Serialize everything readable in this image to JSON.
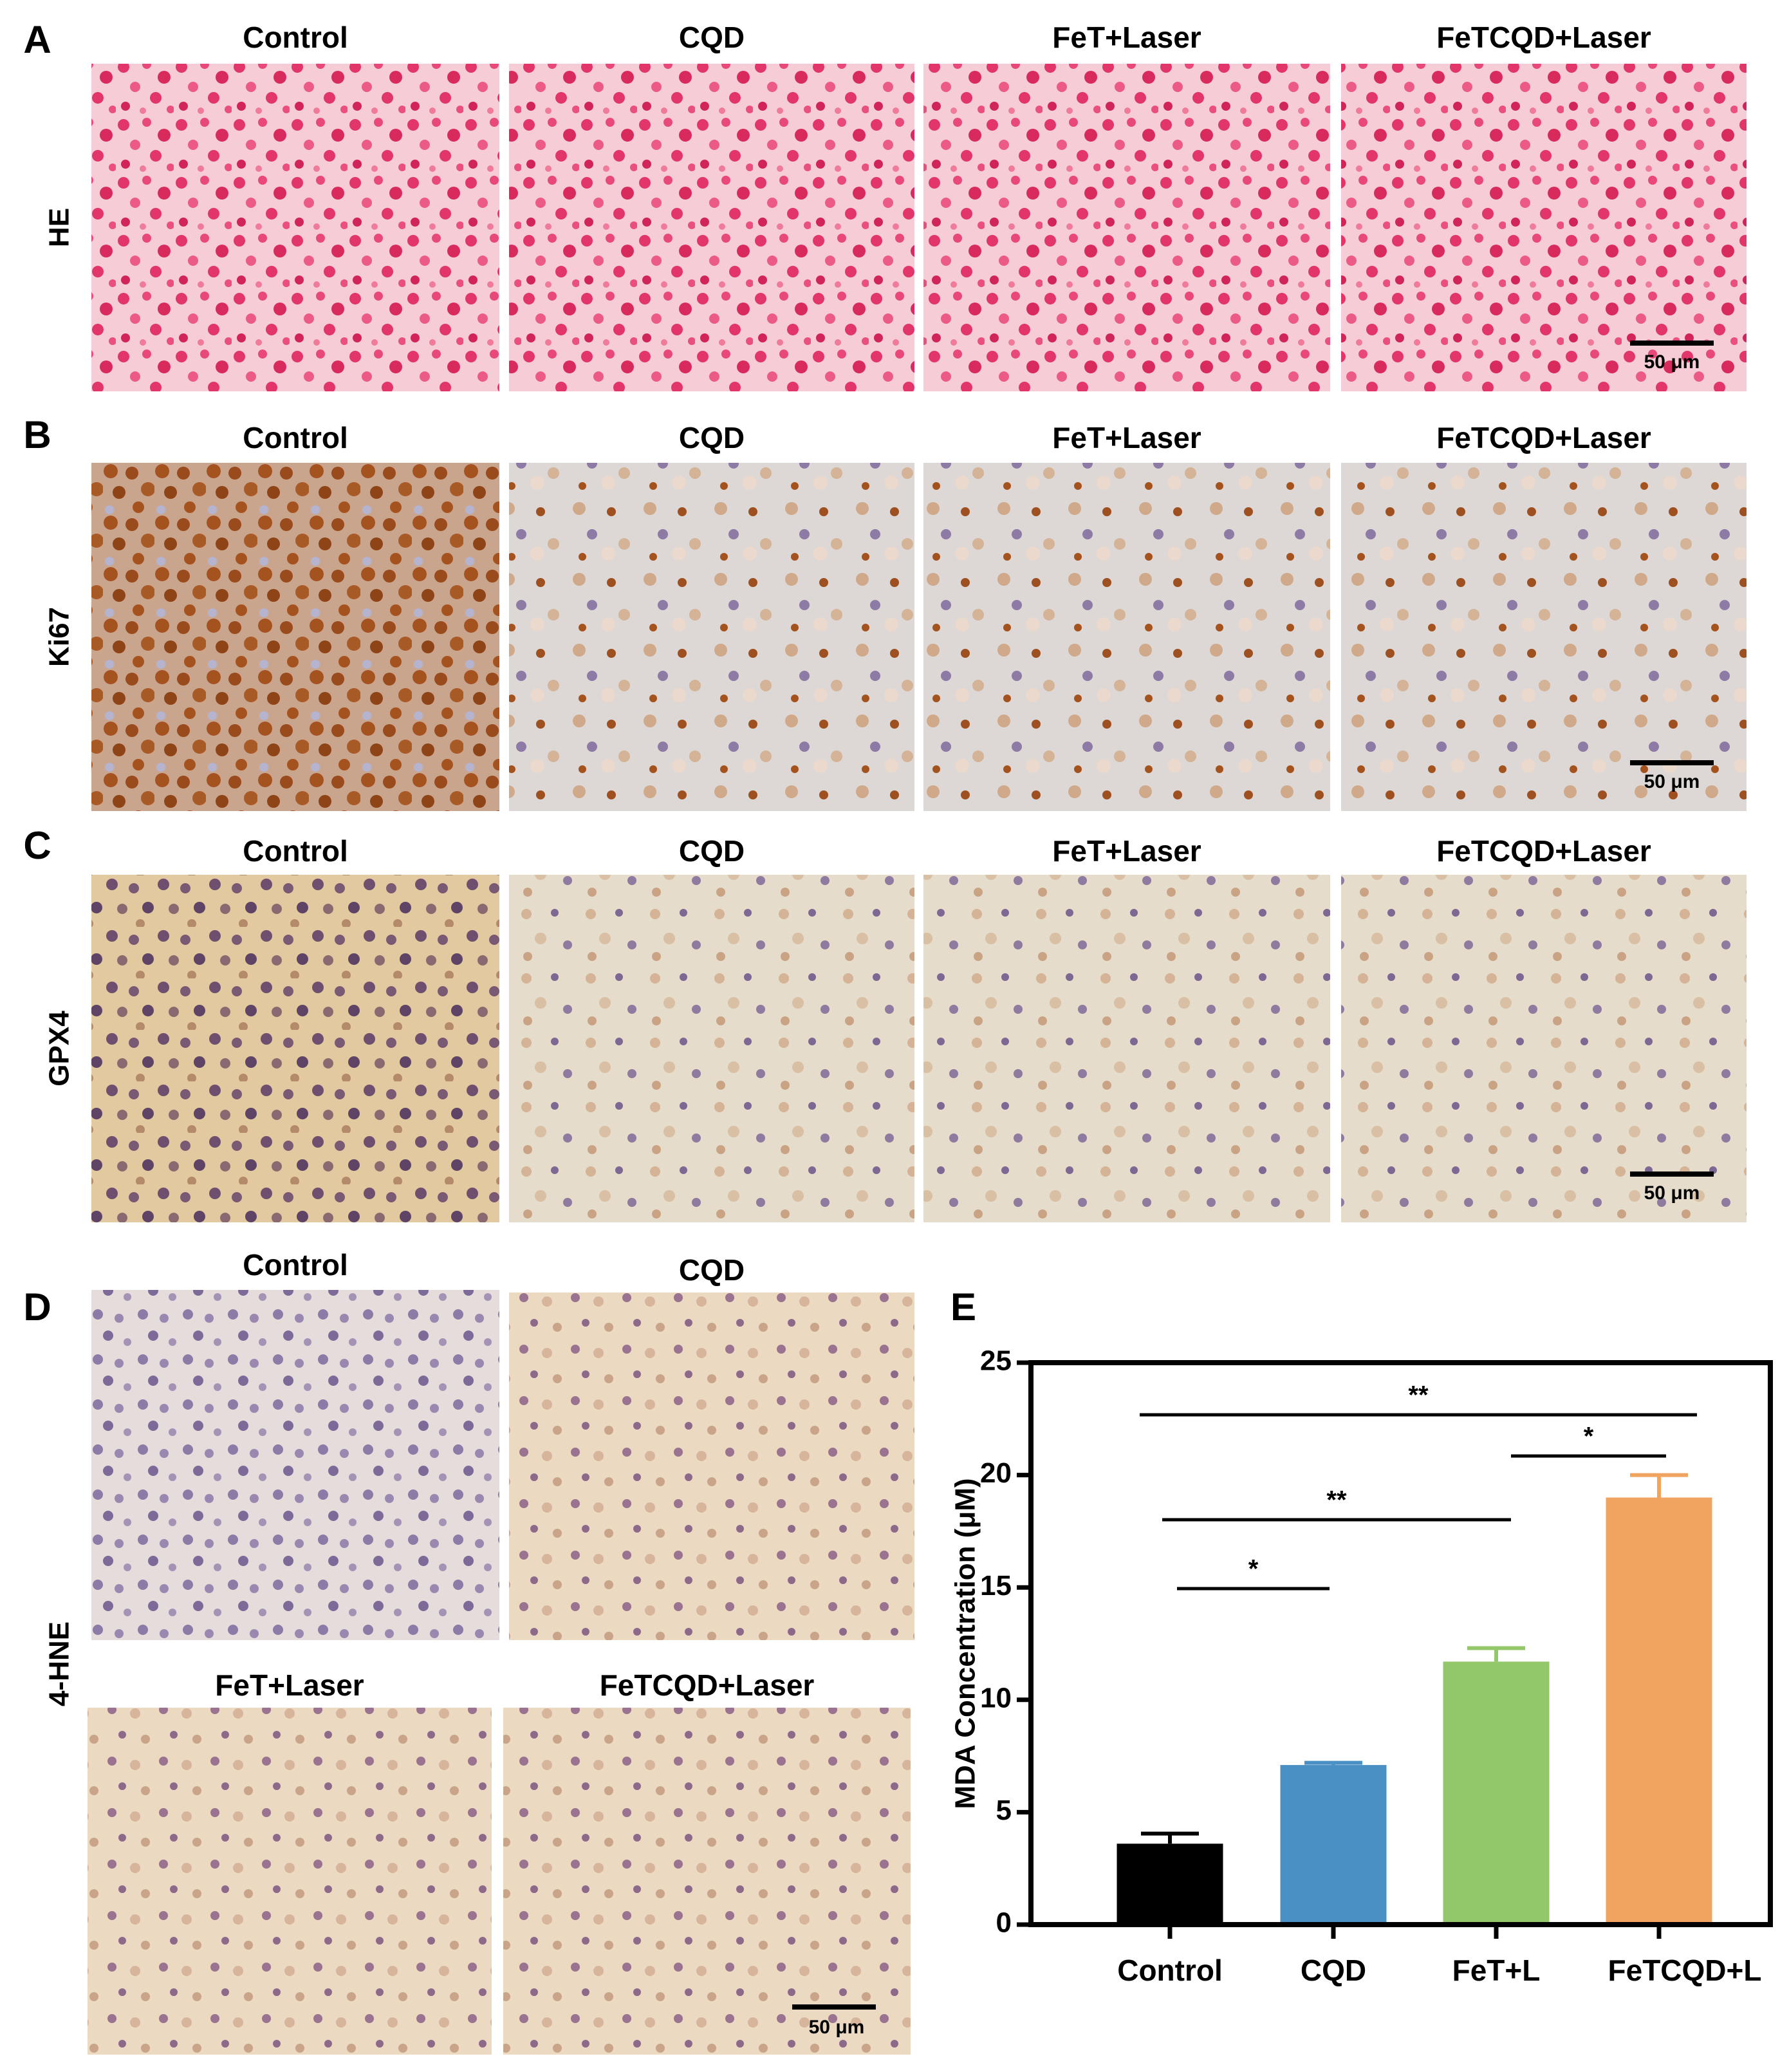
{
  "rows": [
    {
      "letter": "A",
      "stain": "HE",
      "titles": [
        "Control",
        "CQD",
        "FeT+Laser",
        "FeTCQD+Laser"
      ],
      "scale_bar": "50 μm"
    },
    {
      "letter": "B",
      "stain": "Ki67",
      "titles": [
        "Control",
        "CQD",
        "FeT+Laser",
        "FeTCQD+Laser"
      ],
      "scale_bar": "50 μm"
    },
    {
      "letter": "C",
      "stain": "GPX4",
      "titles": [
        "Control",
        "CQD",
        "FeT+Laser",
        "FeTCQD+Laser"
      ],
      "scale_bar": "50 μm"
    }
  ],
  "panel_d": {
    "letter": "D",
    "stain": "4-HNE",
    "titles": [
      "Control",
      "CQD",
      "FeT+Laser",
      "FeTCQD+Laser"
    ],
    "scale_bar": "50 μm"
  },
  "chart_data": {
    "type": "bar",
    "letter": "E",
    "ylabel": "MDA Concentration (μM)",
    "categories": [
      "Control",
      "CQD",
      "FeT+L",
      "FeTCQD+L"
    ],
    "values": [
      3.6,
      7.1,
      11.7,
      19.0
    ],
    "errors": [
      0.45,
      0.1,
      0.6,
      1.0
    ],
    "colors": [
      "#000000",
      "#4a90c4",
      "#92c76a",
      "#f0a45f"
    ],
    "ylim": [
      0,
      25
    ],
    "yticks": [
      0,
      5,
      10,
      15,
      20,
      25
    ],
    "significance": [
      "**",
      "*",
      "**",
      "*"
    ]
  }
}
